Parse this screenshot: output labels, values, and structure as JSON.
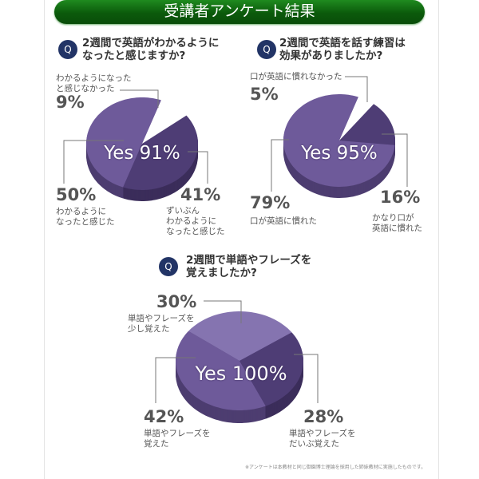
{
  "title": "受講者アンケート結果",
  "q_icon": "Q",
  "colors": {
    "banner": "#0b5a0b",
    "q_badge": "#223466",
    "pie_light": "#6e5a9a",
    "pie_dark": "#4e3d75",
    "pie_lightest": "#8574b0"
  },
  "chart_data": [
    {
      "type": "pie",
      "title": "2週間で英語がわかるようになったと感じますか?",
      "center_label": "Yes 91%",
      "slices": [
        {
          "label": "わかるようになったと感じなかった",
          "value": 9,
          "pct_text": "9%"
        },
        {
          "label": "ずいぶんわかるようになったと感じた",
          "value": 41,
          "pct_text": "41%"
        },
        {
          "label": "わかるようになったと感じた",
          "value": 50,
          "pct_text": "50%"
        }
      ]
    },
    {
      "type": "pie",
      "title": "2週間で英語を話す練習は効果がありましたか?",
      "center_label": "Yes 95%",
      "slices": [
        {
          "label": "口が英語に慣れなかった",
          "value": 5,
          "pct_text": "5%"
        },
        {
          "label": "かなり口が英語に慣れた",
          "value": 16,
          "pct_text": "16%"
        },
        {
          "label": "口が英語に慣れた",
          "value": 79,
          "pct_text": "79%"
        }
      ]
    },
    {
      "type": "pie",
      "title": "2週間で単語やフレーズを覚えましたか?",
      "center_label": "Yes 100%",
      "slices": [
        {
          "label": "単語やフレーズを少し覚えた",
          "value": 30,
          "pct_text": "30%"
        },
        {
          "label": "単語やフレーズをだいぶ覚えた",
          "value": 28,
          "pct_text": "28%"
        },
        {
          "label": "単語やフレーズを覚えた",
          "value": 42,
          "pct_text": "42%"
        }
      ]
    }
  ],
  "q_lines": [
    [
      "2週間で英語がわかるように",
      "なったと感じますか?"
    ],
    [
      "2週間で英語を話す練習は",
      "効果がありましたか?"
    ],
    [
      "2週間で単語やフレーズを",
      "覚えましたか?"
    ]
  ],
  "label_lines": {
    "p1_s0": [
      "わかるようになった",
      "と感じなかった"
    ],
    "p1_s1": [
      "ずいぶん",
      "わかるように",
      "なったと感じた"
    ],
    "p1_s2": [
      "わかるように",
      "なったと感じた"
    ],
    "p2_s1": [
      "かなり口が",
      "英語に慣れた"
    ],
    "p3_s0": [
      "単語やフレーズを",
      "少し覚えた"
    ],
    "p3_s1": [
      "単語やフレーズを",
      "だいぶ覚えた"
    ],
    "p3_s2": [
      "単語やフレーズを",
      "覚えた"
    ]
  },
  "footnote": "※アンケートは本教材と同じ御園博士理論を採用した姉妹教材に実施したものです。"
}
